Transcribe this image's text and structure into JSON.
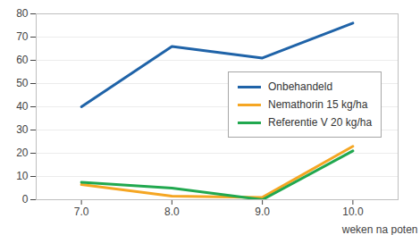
{
  "chart_data": {
    "type": "line",
    "x_label": "weken na poten",
    "x": [
      7,
      8,
      9,
      10
    ],
    "xlim": [
      6.5,
      10.5
    ],
    "xticks": [
      7,
      8,
      9,
      10
    ],
    "ylim": [
      0,
      80
    ],
    "yticks": [
      0,
      10,
      20,
      30,
      40,
      50,
      60,
      70,
      80
    ],
    "grid": true,
    "legend": "right",
    "series": [
      {
        "name": "Onbehandeld",
        "color": "#1f63a8",
        "values": [
          40,
          66,
          61,
          76
        ]
      },
      {
        "name": "Nemathorin 15 kg/ha",
        "color": "#f5a623",
        "values": [
          6.5,
          1.5,
          1,
          23
        ]
      },
      {
        "name": "Referentie V 20 kg/ha",
        "color": "#21a84f",
        "values": [
          7.5,
          5,
          0,
          21
        ]
      }
    ]
  }
}
